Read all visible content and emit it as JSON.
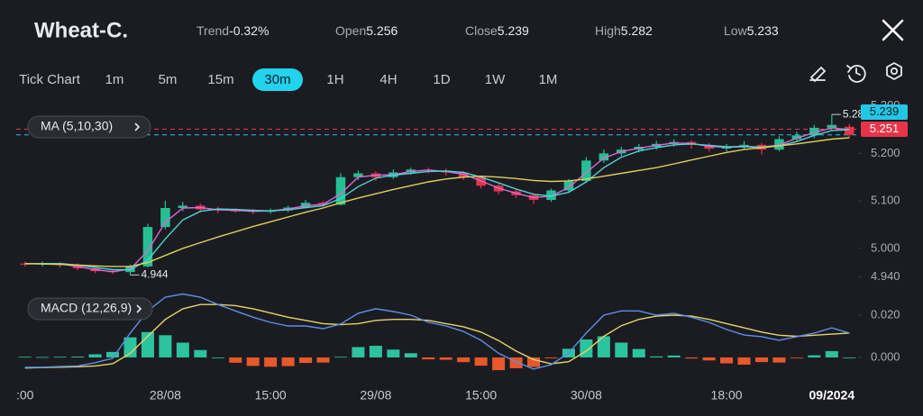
{
  "header": {
    "title": "Wheat-C.",
    "stats": [
      {
        "label": "Trend",
        "value": "-0.32%"
      },
      {
        "label": "Open",
        "value": "5.256"
      },
      {
        "label": "Close",
        "value": "5.239"
      },
      {
        "label": "High",
        "value": "5.282"
      },
      {
        "label": "Low",
        "value": "5.233"
      }
    ]
  },
  "timeframes": [
    "Tick Chart",
    "1m",
    "5m",
    "15m",
    "30m",
    "1H",
    "4H",
    "1D",
    "1W",
    "1M"
  ],
  "selected_timeframe": 4,
  "chart_data": {
    "type": "candlestick",
    "ma_legend": "MA (5,10,30)",
    "macd_legend": "MACD (12,26,9)",
    "categories": [
      ":00",
      null,
      null,
      null,
      null,
      null,
      null,
      null,
      "28/08",
      null,
      null,
      null,
      null,
      null,
      "15:00",
      null,
      null,
      null,
      null,
      null,
      "29/08",
      null,
      null,
      null,
      null,
      null,
      "15:00",
      null,
      null,
      null,
      null,
      null,
      "30/08",
      null,
      null,
      null,
      null,
      null,
      null,
      null,
      "18:00",
      null,
      null,
      null,
      null,
      null,
      "09/2024",
      null
    ],
    "up_color": "#26bf94",
    "down_color": "#e8344b",
    "ohlc": [
      [
        4.968,
        4.972,
        4.962,
        4.966
      ],
      [
        4.966,
        4.972,
        4.962,
        4.969
      ],
      [
        4.969,
        4.971,
        4.96,
        4.965
      ],
      [
        4.965,
        4.968,
        4.954,
        4.958
      ],
      [
        4.958,
        4.961,
        4.948,
        4.952
      ],
      [
        4.952,
        4.955,
        4.946,
        4.95
      ],
      [
        4.95,
        4.966,
        4.944,
        4.962
      ],
      [
        4.962,
        5.052,
        4.96,
        5.045
      ],
      [
        5.045,
        5.1,
        5.04,
        5.085
      ],
      [
        5.085,
        5.098,
        5.078,
        5.09
      ],
      [
        5.09,
        5.094,
        5.076,
        5.082
      ],
      [
        5.082,
        5.088,
        5.074,
        5.08
      ],
      [
        5.08,
        5.084,
        5.075,
        5.079
      ],
      [
        5.079,
        5.083,
        5.072,
        5.077
      ],
      [
        5.077,
        5.084,
        5.073,
        5.08
      ],
      [
        5.08,
        5.09,
        5.076,
        5.086
      ],
      [
        5.086,
        5.102,
        5.084,
        5.096
      ],
      [
        5.096,
        5.1,
        5.088,
        5.092
      ],
      [
        5.092,
        5.158,
        5.09,
        5.15
      ],
      [
        5.15,
        5.164,
        5.144,
        5.158
      ],
      [
        5.158,
        5.162,
        5.142,
        5.15
      ],
      [
        5.15,
        5.166,
        5.146,
        5.16
      ],
      [
        5.16,
        5.17,
        5.155,
        5.166
      ],
      [
        5.166,
        5.17,
        5.158,
        5.164
      ],
      [
        5.164,
        5.168,
        5.154,
        5.16
      ],
      [
        5.16,
        5.163,
        5.144,
        5.15
      ],
      [
        5.15,
        5.152,
        5.126,
        5.132
      ],
      [
        5.132,
        5.136,
        5.114,
        5.12
      ],
      [
        5.12,
        5.124,
        5.106,
        5.112
      ],
      [
        5.112,
        5.116,
        5.094,
        5.102
      ],
      [
        5.102,
        5.126,
        5.098,
        5.122
      ],
      [
        5.122,
        5.146,
        5.118,
        5.142
      ],
      [
        5.142,
        5.192,
        5.138,
        5.185
      ],
      [
        5.185,
        5.208,
        5.18,
        5.2
      ],
      [
        5.2,
        5.214,
        5.194,
        5.208
      ],
      [
        5.208,
        5.22,
        5.202,
        5.214
      ],
      [
        5.214,
        5.226,
        5.208,
        5.22
      ],
      [
        5.22,
        5.23,
        5.214,
        5.224
      ],
      [
        5.224,
        5.228,
        5.21,
        5.218
      ],
      [
        5.218,
        5.222,
        5.204,
        5.21
      ],
      [
        5.21,
        5.22,
        5.204,
        5.214
      ],
      [
        5.214,
        5.226,
        5.208,
        5.218
      ],
      [
        5.218,
        5.222,
        5.198,
        5.208
      ],
      [
        5.208,
        5.236,
        5.204,
        5.23
      ],
      [
        5.23,
        5.246,
        5.226,
        5.238
      ],
      [
        5.238,
        5.26,
        5.232,
        5.254
      ],
      [
        5.254,
        5.282,
        5.25,
        5.26
      ],
      [
        5.256,
        5.262,
        5.233,
        5.239
      ]
    ],
    "ma_series": [
      {
        "color": "#d46ad8",
        "values": [
          4.967,
          4.968,
          4.967,
          4.962,
          4.955,
          4.951,
          4.956,
          4.995,
          5.055,
          5.085,
          5.086,
          5.081,
          5.08,
          5.078,
          5.079,
          5.083,
          5.09,
          5.093,
          5.115,
          5.15,
          5.154,
          5.155,
          5.162,
          5.165,
          5.162,
          5.156,
          5.142,
          5.127,
          5.116,
          5.107,
          5.11,
          5.128,
          5.16,
          5.19,
          5.204,
          5.211,
          5.217,
          5.222,
          5.221,
          5.215,
          5.213,
          5.215,
          5.213,
          5.218,
          5.232,
          5.244,
          5.254,
          5.25
        ]
      },
      {
        "color": "#4fd3d0",
        "values": [
          4.968,
          4.968,
          4.968,
          4.965,
          4.96,
          4.955,
          4.955,
          4.975,
          5.02,
          5.06,
          5.078,
          5.083,
          5.082,
          5.08,
          5.079,
          5.081,
          5.086,
          5.09,
          5.105,
          5.13,
          5.148,
          5.154,
          5.158,
          5.162,
          5.163,
          5.16,
          5.15,
          5.138,
          5.125,
          5.114,
          5.11,
          5.118,
          5.14,
          5.17,
          5.192,
          5.205,
          5.212,
          5.218,
          5.22,
          5.217,
          5.214,
          5.214,
          5.213,
          5.216,
          5.225,
          5.238,
          5.248,
          5.25
        ]
      },
      {
        "color": "#e0cf5a",
        "values": [
          4.968,
          4.967,
          4.966,
          4.965,
          4.963,
          4.962,
          4.962,
          4.97,
          4.985,
          5.0,
          5.012,
          5.024,
          5.035,
          5.046,
          5.056,
          5.066,
          5.076,
          5.085,
          5.096,
          5.106,
          5.115,
          5.124,
          5.132,
          5.14,
          5.146,
          5.15,
          5.152,
          5.15,
          5.147,
          5.143,
          5.141,
          5.142,
          5.146,
          5.152,
          5.158,
          5.164,
          5.17,
          5.178,
          5.186,
          5.194,
          5.202,
          5.208,
          5.212,
          5.216,
          5.22,
          5.225,
          5.23,
          5.233
        ]
      }
    ],
    "ylim": [
      4.92,
      5.305
    ],
    "yticks": [
      {
        "value": 5.3,
        "label": "5.300"
      },
      {
        "value": 5.2,
        "label": "5.200"
      },
      {
        "value": 5.1,
        "label": "5.100"
      },
      {
        "value": 5.0,
        "label": "5.000"
      },
      {
        "value": 4.94,
        "label": "4.940"
      }
    ],
    "price_lines": [
      {
        "value": 5.251,
        "color": "#e8344b"
      },
      {
        "value": 5.239,
        "color": "#22c7e6"
      }
    ],
    "high_label": {
      "value": 5.282,
      "label": "5.28"
    },
    "low_label": 4.944,
    "macd": {
      "dif": {
        "color": "#5f8fe8",
        "values": [
          -0.0047,
          -0.0046,
          -0.0043,
          -0.004,
          -0.0025,
          -0.0004,
          0.0115,
          0.022,
          0.0285,
          0.03,
          0.0285,
          0.025,
          0.022,
          0.019,
          0.0166,
          0.0149,
          0.0149,
          0.0136,
          0.0158,
          0.0209,
          0.023,
          0.0217,
          0.02,
          0.0166,
          0.0149,
          0.0123,
          0.0081,
          0.002,
          -0.0021,
          -0.0055,
          -0.0034,
          0.0021,
          0.0115,
          0.02,
          0.022,
          0.022,
          0.02,
          0.0209,
          0.019,
          0.0166,
          0.0132,
          0.0106,
          0.0098,
          0.0081,
          0.0098,
          0.0115,
          0.014,
          0.0115
        ]
      },
      "dea": {
        "color": "#e6d36a",
        "values": [
          -0.005,
          -0.0048,
          -0.0046,
          -0.0044,
          -0.004,
          -0.003,
          0.002,
          0.01,
          0.018,
          0.023,
          0.025,
          0.025,
          0.0245,
          0.023,
          0.021,
          0.019,
          0.0175,
          0.016,
          0.0155,
          0.016,
          0.0175,
          0.018,
          0.018,
          0.0175,
          0.016,
          0.0145,
          0.012,
          0.008,
          0.003,
          -0.001,
          -0.003,
          -0.002,
          0.003,
          0.01,
          0.015,
          0.018,
          0.0195,
          0.02,
          0.0195,
          0.018,
          0.016,
          0.014,
          0.012,
          0.0105,
          0.01,
          0.0105,
          0.011,
          0.0115
        ]
      },
      "hist": {
        "up_color": "#2cc39f",
        "down_color": "#e8582b",
        "values": [
          0.0003,
          0.0002,
          0.0003,
          0.0004,
          0.0015,
          0.0026,
          0.0095,
          0.012,
          0.0105,
          0.007,
          0.0035,
          0,
          -0.0025,
          -0.004,
          -0.0044,
          -0.0041,
          -0.0026,
          -0.0024,
          0.0003,
          0.0049,
          0.0055,
          0.0037,
          0.002,
          -0.0009,
          -0.0011,
          -0.0022,
          -0.0039,
          -0.006,
          -0.0051,
          -0.0045,
          -0.0004,
          0.0041,
          0.0085,
          0.01,
          0.007,
          0.004,
          0.0005,
          0.0009,
          -0.0005,
          -0.0014,
          -0.0028,
          -0.0034,
          -0.0022,
          -0.0024,
          -0.0002,
          0.001,
          0.003,
          0
        ]
      },
      "ylim": [
        -0.0098,
        0.0319
      ],
      "yticks": [
        {
          "value": 0.02,
          "label": "0.020"
        },
        {
          "value": 0,
          "label": "0.000"
        }
      ]
    }
  }
}
